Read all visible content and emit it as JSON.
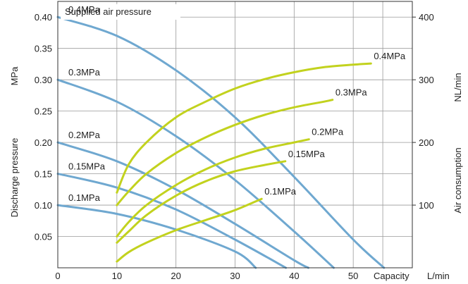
{
  "chart_data": {
    "type": "line",
    "legend_title": "Supplied air pressure",
    "xlabel": "Capacity",
    "xunit": "L/min",
    "ylabel_left": "Discharge pressure",
    "yunit_left": "MPa",
    "ylabel_right": "Air consumption",
    "yunit_right": "NL/min",
    "xlim": [
      0,
      60
    ],
    "ylim_left": [
      0,
      0.425
    ],
    "ylim_right": [
      0,
      425
    ],
    "x_ticks": [
      "0",
      "10",
      "20",
      "30",
      "40",
      "50"
    ],
    "y_ticks_left": [
      "0.05",
      "0.10",
      "0.15",
      "0.20",
      "0.25",
      "0.30",
      "0.35",
      "0.40"
    ],
    "y_ticks_right": [
      "100",
      "200",
      "300",
      "400"
    ],
    "grid": true,
    "colors": {
      "discharge": "#6fa8d0",
      "consumption": "#c2d21e",
      "axis": "#333333",
      "grid": "#9a9a9a"
    },
    "discharge_series": [
      {
        "name": "0.4MPa",
        "points": [
          [
            0,
            0.4
          ],
          [
            10,
            0.37
          ],
          [
            20,
            0.315
          ],
          [
            30,
            0.24
          ],
          [
            40,
            0.145
          ],
          [
            50,
            0.045
          ],
          [
            55.2,
            0
          ]
        ]
      },
      {
        "name": "0.3MPa",
        "points": [
          [
            0,
            0.3
          ],
          [
            10,
            0.265
          ],
          [
            20,
            0.21
          ],
          [
            30,
            0.14
          ],
          [
            40,
            0.058
          ],
          [
            46.7,
            0
          ]
        ]
      },
      {
        "name": "0.2MPa",
        "points": [
          [
            0,
            0.2
          ],
          [
            10,
            0.17
          ],
          [
            20,
            0.125
          ],
          [
            30,
            0.07
          ],
          [
            40,
            0.012
          ],
          [
            42.4,
            0
          ]
        ]
      },
      {
        "name": "0.15MPa",
        "points": [
          [
            0,
            0.15
          ],
          [
            10,
            0.128
          ],
          [
            20,
            0.093
          ],
          [
            30,
            0.045
          ],
          [
            38.6,
            0
          ]
        ]
      },
      {
        "name": "0.1MPa",
        "points": [
          [
            0,
            0.1
          ],
          [
            10,
            0.086
          ],
          [
            20,
            0.061
          ],
          [
            30,
            0.026
          ],
          [
            33.5,
            0
          ]
        ]
      }
    ],
    "consumption_series": [
      {
        "name": "0.4MPa",
        "points": [
          [
            10,
            120
          ],
          [
            12,
            165
          ],
          [
            15,
            200
          ],
          [
            20,
            240
          ],
          [
            25,
            265
          ],
          [
            30,
            286
          ],
          [
            35,
            301
          ],
          [
            40,
            312
          ],
          [
            45,
            320
          ],
          [
            50,
            324
          ],
          [
            53,
            326
          ]
        ]
      },
      {
        "name": "0.3MPa",
        "points": [
          [
            10,
            100
          ],
          [
            12,
            122
          ],
          [
            15,
            150
          ],
          [
            20,
            183
          ],
          [
            25,
            208
          ],
          [
            30,
            228
          ],
          [
            35,
            244
          ],
          [
            40,
            256
          ],
          [
            45,
            265
          ],
          [
            46.5,
            268
          ]
        ]
      },
      {
        "name": "0.2MPa",
        "points": [
          [
            10,
            50
          ],
          [
            12,
            73
          ],
          [
            15,
            100
          ],
          [
            20,
            132
          ],
          [
            25,
            157
          ],
          [
            30,
            176
          ],
          [
            35,
            190
          ],
          [
            40,
            200
          ],
          [
            42.5,
            205
          ]
        ]
      },
      {
        "name": "0.15MPa",
        "points": [
          [
            10,
            40
          ],
          [
            12,
            58
          ],
          [
            15,
            84
          ],
          [
            20,
            115
          ],
          [
            25,
            138
          ],
          [
            30,
            154
          ],
          [
            35,
            164
          ],
          [
            38.5,
            170
          ]
        ]
      },
      {
        "name": "0.1MPa",
        "points": [
          [
            10,
            10
          ],
          [
            12,
            25
          ],
          [
            15,
            40
          ],
          [
            20,
            60
          ],
          [
            25,
            76
          ],
          [
            30,
            92
          ],
          [
            34.5,
            110
          ]
        ]
      }
    ],
    "discharge_label_texts": [
      "0.4MPa",
      "0.3MPa",
      "0.2MPa",
      "0.15MPa",
      "0.1MPa"
    ],
    "consumption_label_texts": [
      "0.4MPa",
      "0.3MPa",
      "0.2MPa",
      "0.15MPa",
      "0.1MPa"
    ]
  }
}
